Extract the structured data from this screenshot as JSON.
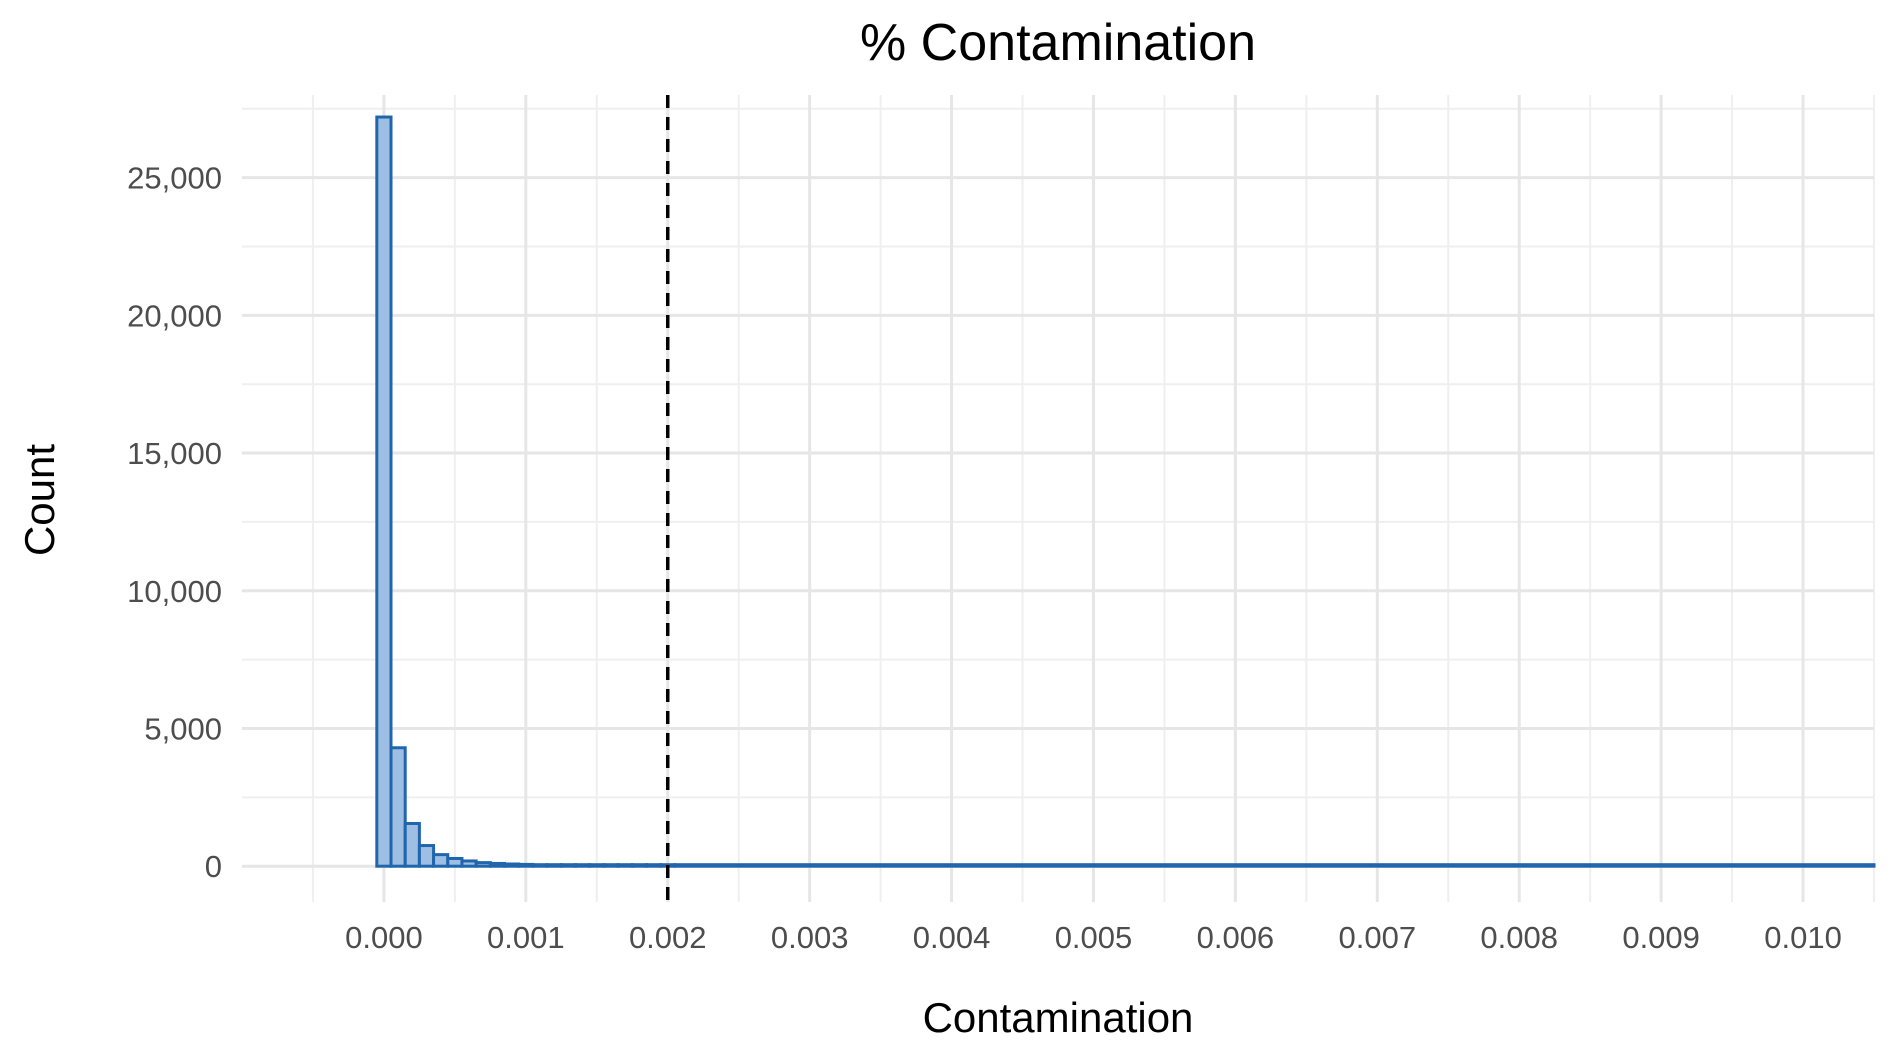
{
  "chart_data": {
    "type": "bar",
    "subtype": "histogram",
    "title": "% Contamination",
    "xlabel": "Contamination",
    "ylabel": "Count",
    "xlim": [
      -0.001,
      0.0105
    ],
    "ylim": [
      -1300,
      28000
    ],
    "x_ticks": [
      0.0,
      0.001,
      0.002,
      0.003,
      0.004,
      0.005,
      0.006,
      0.007,
      0.008,
      0.009,
      0.01
    ],
    "x_tick_labels": [
      "0.000",
      "0.001",
      "0.002",
      "0.003",
      "0.004",
      "0.005",
      "0.006",
      "0.007",
      "0.008",
      "0.009",
      "0.010"
    ],
    "y_ticks": [
      0,
      5000,
      10000,
      15000,
      20000,
      25000
    ],
    "y_tick_labels": [
      "0",
      "5,000",
      "10,000",
      "15,000",
      "20,000",
      "25,000"
    ],
    "grid": true,
    "bin_width": 0.0001,
    "bins": [
      {
        "x0": -5e-05,
        "x1": 5e-05,
        "count": 27200
      },
      {
        "x0": 5e-05,
        "x1": 0.00015,
        "count": 4300
      },
      {
        "x0": 0.00015,
        "x1": 0.00025,
        "count": 1550
      },
      {
        "x0": 0.00025,
        "x1": 0.00035,
        "count": 750
      },
      {
        "x0": 0.00035,
        "x1": 0.00045,
        "count": 420
      },
      {
        "x0": 0.00045,
        "x1": 0.00055,
        "count": 280
      },
      {
        "x0": 0.00055,
        "x1": 0.00065,
        "count": 190
      },
      {
        "x0": 0.00065,
        "x1": 0.00075,
        "count": 130
      },
      {
        "x0": 0.00075,
        "x1": 0.00085,
        "count": 100
      },
      {
        "x0": 0.00085,
        "x1": 0.00095,
        "count": 80
      },
      {
        "x0": 0.00095,
        "x1": 0.00105,
        "count": 65
      },
      {
        "x0": 0.00105,
        "x1": 0.00115,
        "count": 50
      },
      {
        "x0": 0.00115,
        "x1": 0.00125,
        "count": 40
      },
      {
        "x0": 0.00125,
        "x1": 0.00135,
        "count": 35
      },
      {
        "x0": 0.00135,
        "x1": 0.00145,
        "count": 30
      },
      {
        "x0": 0.00145,
        "x1": 0.00155,
        "count": 25
      },
      {
        "x0": 0.00155,
        "x1": 0.00165,
        "count": 20
      },
      {
        "x0": 0.00165,
        "x1": 0.00175,
        "count": 18
      },
      {
        "x0": 0.00175,
        "x1": 0.00185,
        "count": 15
      },
      {
        "x0": 0.00185,
        "x1": 0.00195,
        "count": 12
      },
      {
        "x0": 0.00195,
        "x1": 0.00205,
        "count": 10
      }
    ],
    "tail_baseline": {
      "x0": 0.00205,
      "x1": 0.0105,
      "count": 5
    },
    "reference_line": {
      "x": 0.002,
      "style": "dashed",
      "color": "#000000"
    },
    "colors": {
      "bar_fill": "#9ebfe3",
      "bar_stroke": "#2166ac",
      "grid": "#e6e6e6",
      "tick_text": "#4d4d4d"
    }
  }
}
